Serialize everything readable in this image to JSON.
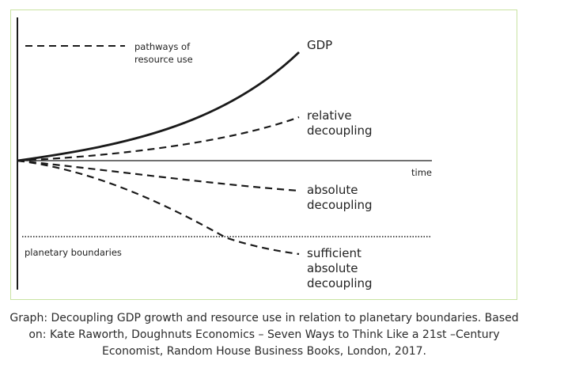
{
  "diagram": {
    "legend": {
      "line1": "pathways of",
      "line2": "resource use"
    },
    "curves": {
      "gdp": "GDP",
      "relative": [
        "relative",
        "decoupling"
      ],
      "absolute": [
        "absolute",
        "decoupling"
      ],
      "sufficient": [
        "sufficient",
        "absolute",
        "decoupling"
      ]
    },
    "axis": {
      "time_label": "time"
    },
    "boundary": {
      "label": "planetary boundaries"
    }
  },
  "caption": {
    "line1": "Graph: Decoupling GDP growth and resource use in relation to planetary boundaries. Based",
    "line2": "on: Kate Raworth, Doughnuts Economics – Seven Ways to Think Like a 21st –Century",
    "line3": "Economist, Random House Business Books, London, 2017."
  },
  "colors": {
    "frame_border": "#c9e3a2",
    "line": "#1a1a1a",
    "text": "#222222"
  }
}
